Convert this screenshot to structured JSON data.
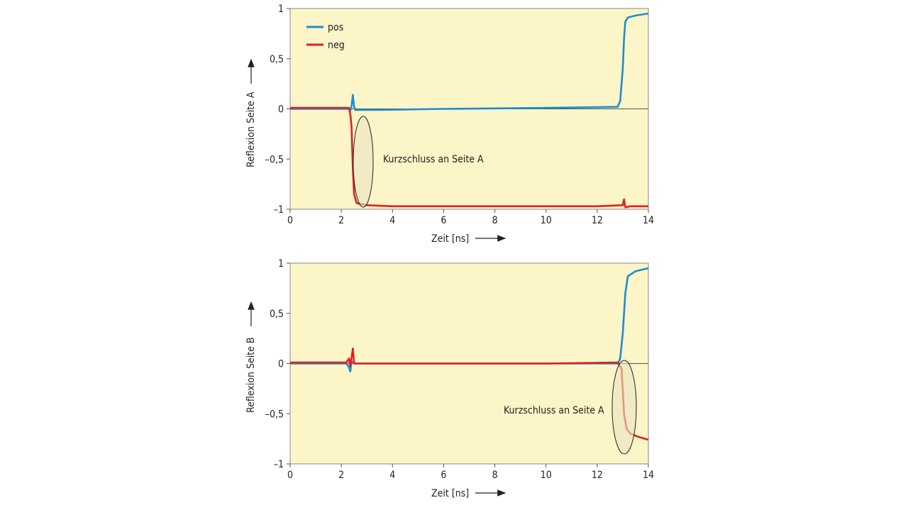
{
  "chart_data": [
    {
      "type": "line",
      "title": "",
      "xlabel": "Zeit [ns]",
      "ylabel": "Reflexion Seite A",
      "xlim": [
        0,
        14
      ],
      "ylim": [
        -1,
        1
      ],
      "xticks": [
        0,
        2,
        4,
        6,
        8,
        10,
        12,
        14
      ],
      "xtick_labels": [
        "0",
        "2",
        "4",
        "6",
        "8",
        "10",
        "12",
        "14"
      ],
      "yticks": [
        1,
        0.5,
        0,
        -0.5,
        -1
      ],
      "ytick_labels": [
        "1",
        "0,5",
        "0",
        "–0,5",
        "–1"
      ],
      "legend": {
        "placement": "top-left",
        "entries": [
          "pos",
          "neg"
        ]
      },
      "grid": false,
      "background": "#fcf5c7",
      "series": [
        {
          "name": "pos",
          "color": "#1a8fd0",
          "points": [
            [
              0,
              0.0
            ],
            [
              2.3,
              0.0
            ],
            [
              2.35,
              -0.02
            ],
            [
              2.4,
              0.03
            ],
            [
              2.45,
              0.14
            ],
            [
              2.5,
              0.02
            ],
            [
              2.55,
              -0.01
            ],
            [
              3.5,
              -0.01
            ],
            [
              6,
              0.0
            ],
            [
              10,
              0.01
            ],
            [
              12.8,
              0.02
            ],
            [
              12.9,
              0.08
            ],
            [
              13.0,
              0.4
            ],
            [
              13.05,
              0.7
            ],
            [
              13.1,
              0.87
            ],
            [
              13.2,
              0.91
            ],
            [
              13.5,
              0.93
            ],
            [
              14,
              0.95
            ]
          ]
        },
        {
          "name": "neg",
          "color": "#e02020",
          "points": [
            [
              0,
              0.01
            ],
            [
              2.3,
              0.01
            ],
            [
              2.35,
              -0.05
            ],
            [
              2.4,
              -0.18
            ],
            [
              2.45,
              -0.6
            ],
            [
              2.5,
              -0.85
            ],
            [
              2.6,
              -0.94
            ],
            [
              3.0,
              -0.96
            ],
            [
              4,
              -0.97
            ],
            [
              8,
              -0.97
            ],
            [
              12,
              -0.97
            ],
            [
              13.0,
              -0.96
            ],
            [
              13.05,
              -0.9
            ],
            [
              13.1,
              -0.98
            ],
            [
              13.3,
              -0.97
            ],
            [
              14,
              -0.97
            ]
          ]
        }
      ],
      "annotations": [
        {
          "text": "Kurzschluss an Seite A",
          "x": 2.4,
          "y": -0.55
        }
      ]
    },
    {
      "type": "line",
      "title": "",
      "xlabel": "Zeit [ns]",
      "ylabel": "Reflexion Seite B",
      "xlim": [
        0,
        14
      ],
      "ylim": [
        -1,
        1
      ],
      "xticks": [
        0,
        2,
        4,
        6,
        8,
        10,
        12,
        14
      ],
      "xtick_labels": [
        "0",
        "2",
        "4",
        "6",
        "8",
        "10",
        "12",
        "14"
      ],
      "yticks": [
        1,
        0.5,
        0,
        -0.5,
        -1
      ],
      "ytick_labels": [
        "1",
        "0,5",
        "0",
        "–0,5",
        "–1"
      ],
      "grid": false,
      "background": "#fcf5c7",
      "series": [
        {
          "name": "pos",
          "color": "#1a8fd0",
          "points": [
            [
              0,
              0.0
            ],
            [
              2.2,
              0.0
            ],
            [
              2.3,
              -0.04
            ],
            [
              2.35,
              -0.08
            ],
            [
              2.4,
              0.02
            ],
            [
              2.5,
              0.0
            ],
            [
              6,
              0.0
            ],
            [
              10,
              0.0
            ],
            [
              12.8,
              0.0
            ],
            [
              12.9,
              0.05
            ],
            [
              13.0,
              0.3
            ],
            [
              13.1,
              0.7
            ],
            [
              13.2,
              0.87
            ],
            [
              13.5,
              0.92
            ],
            [
              14,
              0.95
            ]
          ]
        },
        {
          "name": "neg",
          "color": "#e02020",
          "points": [
            [
              0,
              0.01
            ],
            [
              2.2,
              0.01
            ],
            [
              2.3,
              0.05
            ],
            [
              2.35,
              -0.03
            ],
            [
              2.45,
              0.15
            ],
            [
              2.5,
              0.0
            ],
            [
              3,
              0.0
            ],
            [
              10,
              0.0
            ],
            [
              12.8,
              0.01
            ],
            [
              12.95,
              -0.05
            ],
            [
              13.0,
              -0.25
            ],
            [
              13.05,
              -0.5
            ],
            [
              13.15,
              -0.65
            ],
            [
              13.3,
              -0.7
            ],
            [
              13.6,
              -0.73
            ],
            [
              14,
              -0.76
            ]
          ]
        }
      ],
      "annotations": [
        {
          "text": "Kurzschluss an Seite A",
          "x": 13.0,
          "y": -0.45
        }
      ]
    }
  ]
}
